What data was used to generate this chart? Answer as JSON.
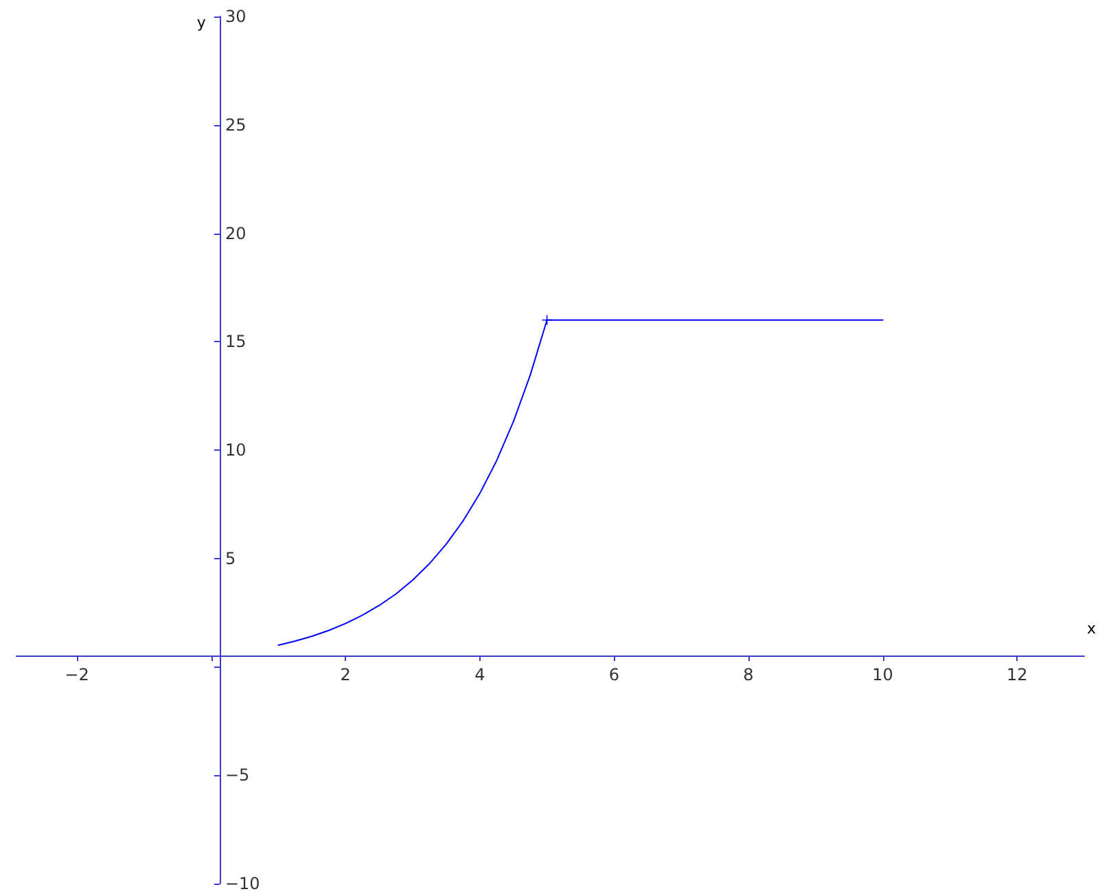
{
  "chart_data": {
    "type": "line",
    "xlabel": "x",
    "ylabel": "y",
    "xlim": [
      -2.9,
      13
    ],
    "ylim": [
      -10,
      30
    ],
    "xticks": [
      -2,
      {
        "value": 0,
        "label": null
      },
      2,
      4,
      6,
      8,
      10,
      12
    ],
    "yticks": [
      -10,
      -5,
      {
        "value": 0,
        "label": null
      },
      5,
      10,
      15,
      20,
      25,
      30
    ],
    "series": [
      {
        "color": "#0000ff",
        "marker": "none",
        "x": [
          1,
          1.25,
          1.5,
          1.75,
          2,
          2.25,
          2.5,
          2.75,
          3,
          3.25,
          3.5,
          3.75,
          4,
          4.25,
          4.5,
          4.75,
          5,
          10
        ],
        "values": [
          1,
          1.19,
          1.41,
          1.68,
          2,
          2.38,
          2.83,
          3.36,
          4,
          4.76,
          5.66,
          6.73,
          8,
          9.51,
          11.31,
          13.45,
          16,
          16
        ]
      },
      {
        "type": "scatter",
        "color": "#0000ff",
        "marker": "cross",
        "x": [
          5
        ],
        "values": [
          16
        ]
      }
    ]
  }
}
